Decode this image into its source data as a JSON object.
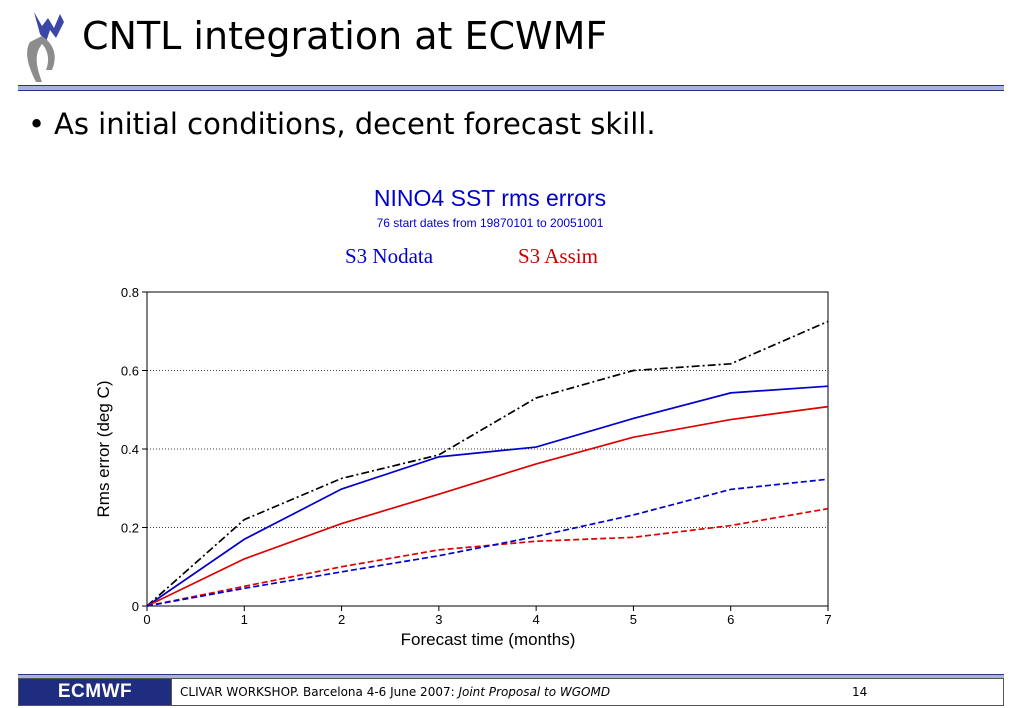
{
  "slide": {
    "title": "CNTL integration at ECWMF",
    "bullet": "As initial conditions, decent forecast skill.",
    "bullet_marker": "•",
    "logo_icon": "ecmwf-figure-logo"
  },
  "chart_data": {
    "type": "line",
    "title": "NINO4 SST rms errors",
    "subtitle": "76 start dates from 19870101 to 20051001",
    "group_labels": [
      "S3 Nodata",
      "S3 Assim"
    ],
    "xlabel": "Forecast time (months)",
    "ylabel": "Rms error (deg C)",
    "x": [
      0,
      1,
      2,
      3,
      4,
      5,
      6,
      7
    ],
    "xlim": [
      0,
      7
    ],
    "ylim": [
      0,
      0.8
    ],
    "xticks": [
      "0",
      "1",
      "2",
      "3",
      "4",
      "5",
      "6",
      "7"
    ],
    "yticks": [
      "0",
      "0.2",
      "0.4",
      "0.6",
      "0.8"
    ],
    "grid": "horizontal dotted",
    "series": [
      {
        "color": "#000000",
        "style": "dashdot",
        "values": [
          0,
          0.22,
          0.325,
          0.385,
          0.53,
          0.6,
          0.617,
          0.725
        ]
      },
      {
        "color": "#0000cc",
        "style": "solid",
        "values": [
          0,
          0.17,
          0.298,
          0.38,
          0.405,
          0.478,
          0.543,
          0.56
        ]
      },
      {
        "color": "#dd0000",
        "style": "solid",
        "values": [
          0,
          0.12,
          0.21,
          0.285,
          0.362,
          0.43,
          0.475,
          0.508
        ]
      },
      {
        "color": "#dd0000",
        "style": "dashed",
        "values": [
          0,
          0.05,
          0.1,
          0.143,
          0.165,
          0.175,
          0.205,
          0.248
        ]
      },
      {
        "color": "#0000cc",
        "style": "dashed",
        "values": [
          0,
          0.045,
          0.087,
          0.128,
          0.177,
          0.232,
          0.297,
          0.323
        ]
      }
    ]
  },
  "footer": {
    "logo_text": "ECMWF",
    "text": "CLIVAR WORKSHOP. Barcelona 4-6 June 2007: ",
    "text_italic": "Joint Proposal to WGOMD",
    "page": "14"
  }
}
